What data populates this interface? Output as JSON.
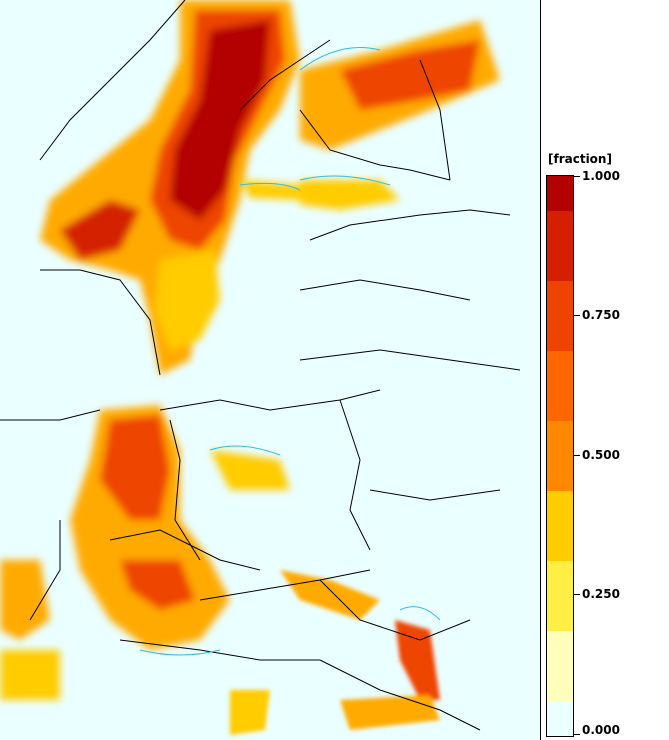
{
  "legend": {
    "title": "[fraction]",
    "ticks": [
      "1.000",
      "0.750",
      "0.500",
      "0.250",
      "0.000"
    ],
    "colors": [
      "#b30000",
      "#d42000",
      "#ee4400",
      "#ff6600",
      "#ff8800",
      "#ffaa00",
      "#ffcc00",
      "#ffee44",
      "#ffffbb",
      "#eaffff"
    ]
  }
}
